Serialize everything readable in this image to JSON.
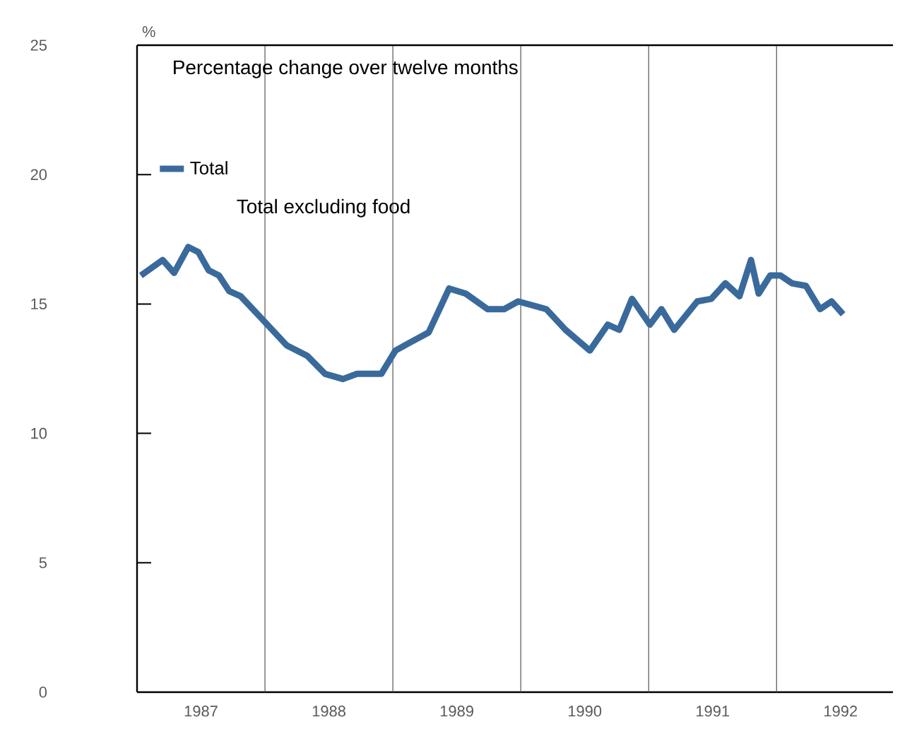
{
  "chart_data": {
    "type": "line",
    "title": "Percentage change over twelve months",
    "ylabel": "%",
    "annotations": [
      "Total excluding food"
    ],
    "x": [
      1987.03,
      1987.2,
      1987.29,
      1987.4,
      1987.48,
      1987.56,
      1987.64,
      1987.72,
      1987.81,
      1988.0,
      1988.17,
      1988.33,
      1988.47,
      1988.61,
      1988.72,
      1988.91,
      1989.02,
      1989.13,
      1989.28,
      1989.44,
      1989.57,
      1989.74,
      1989.87,
      1989.98,
      1990.2,
      1990.35,
      1990.54,
      1990.68,
      1990.77,
      1990.87,
      1991.01,
      1991.1,
      1991.2,
      1991.38,
      1991.49,
      1991.6,
      1991.71,
      1991.8,
      1991.86,
      1991.95,
      1992.03,
      1992.12,
      1992.23,
      1992.34,
      1992.43,
      1992.52
    ],
    "series": [
      {
        "name": "Total",
        "color": "#3a6a9c",
        "values": [
          16.1,
          16.7,
          16.2,
          17.2,
          17.0,
          16.3,
          16.1,
          15.5,
          15.3,
          14.3,
          13.4,
          13.0,
          12.3,
          12.1,
          12.3,
          12.3,
          13.2,
          13.5,
          13.9,
          15.6,
          15.4,
          14.8,
          14.8,
          15.1,
          14.8,
          14.0,
          13.2,
          14.2,
          14.0,
          15.2,
          14.2,
          14.8,
          14.0,
          15.1,
          15.2,
          15.8,
          15.3,
          16.7,
          15.4,
          16.1,
          16.1,
          15.8,
          15.7,
          14.8,
          15.1,
          14.6
        ]
      }
    ],
    "xlim": [
      1987,
      1992.91
    ],
    "xticks": [
      {
        "value": 1987.5,
        "label": "1987"
      },
      {
        "value": 1988.5,
        "label": "1988"
      },
      {
        "value": 1989.5,
        "label": "1989"
      },
      {
        "value": 1990.5,
        "label": "1990"
      },
      {
        "value": 1991.5,
        "label": "1991"
      },
      {
        "value": 1992.5,
        "label": "1992"
      }
    ],
    "ylim": [
      0,
      25
    ],
    "yticks": [
      0,
      5,
      10,
      15,
      20,
      25
    ],
    "ref_lines": [
      {
        "axis": "x",
        "value": 1988,
        "color": "#555555"
      },
      {
        "axis": "x",
        "value": 1989,
        "color": "#555555"
      },
      {
        "axis": "x",
        "value": 1990,
        "color": "#555555"
      },
      {
        "axis": "x",
        "value": 1991,
        "color": "#555555"
      },
      {
        "axis": "x",
        "value": 1992,
        "color": "#555555"
      }
    ],
    "legend": "top left",
    "grid": false,
    "marker": "none",
    "line_style": "solid"
  }
}
